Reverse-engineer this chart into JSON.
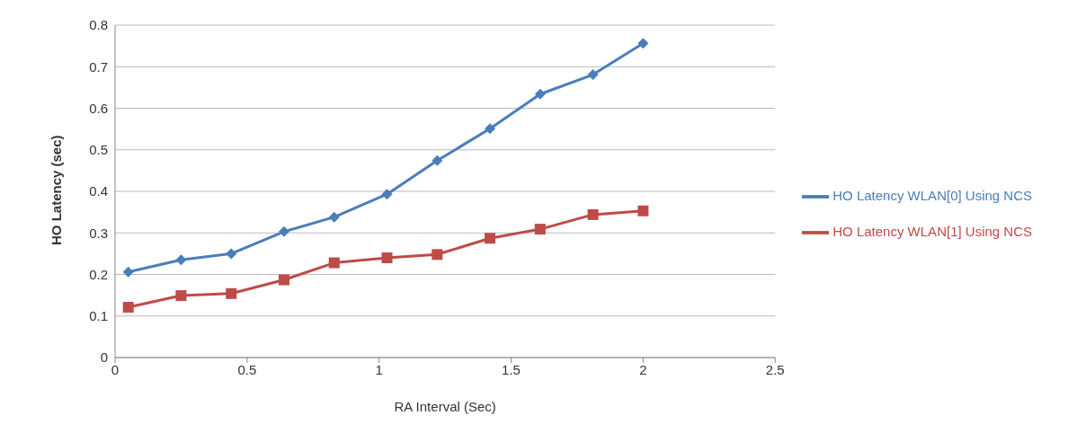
{
  "chart_data": {
    "type": "line",
    "xlabel": "RA Interval (Sec)",
    "ylabel": "HO Latency (sec)",
    "xlim": [
      0,
      2.5
    ],
    "xticks": [
      0,
      0.5,
      1,
      1.5,
      2,
      2.5
    ],
    "ylim": [
      0,
      0.8
    ],
    "yticks": [
      0,
      0.1,
      0.2,
      0.3,
      0.4,
      0.5,
      0.6,
      0.7,
      0.8
    ],
    "grid": "y",
    "legend": "right",
    "x": [
      0.05,
      0.25,
      0.44,
      0.64,
      0.83,
      1.03,
      1.22,
      1.42,
      1.61,
      1.81,
      2.0
    ],
    "series": [
      {
        "name": "HO Latency WLAN[0] Using NCS",
        "color": "#4a7ebb",
        "marker": "diamond",
        "values": [
          0.206,
          0.235,
          0.25,
          0.303,
          0.338,
          0.393,
          0.474,
          0.551,
          0.634,
          0.681,
          0.756
        ]
      },
      {
        "name": "HO Latency WLAN[1] Using NCS",
        "color": "#be4b48",
        "marker": "square",
        "values": [
          0.121,
          0.149,
          0.154,
          0.187,
          0.228,
          0.24,
          0.248,
          0.287,
          0.309,
          0.344,
          0.353
        ]
      }
    ]
  }
}
